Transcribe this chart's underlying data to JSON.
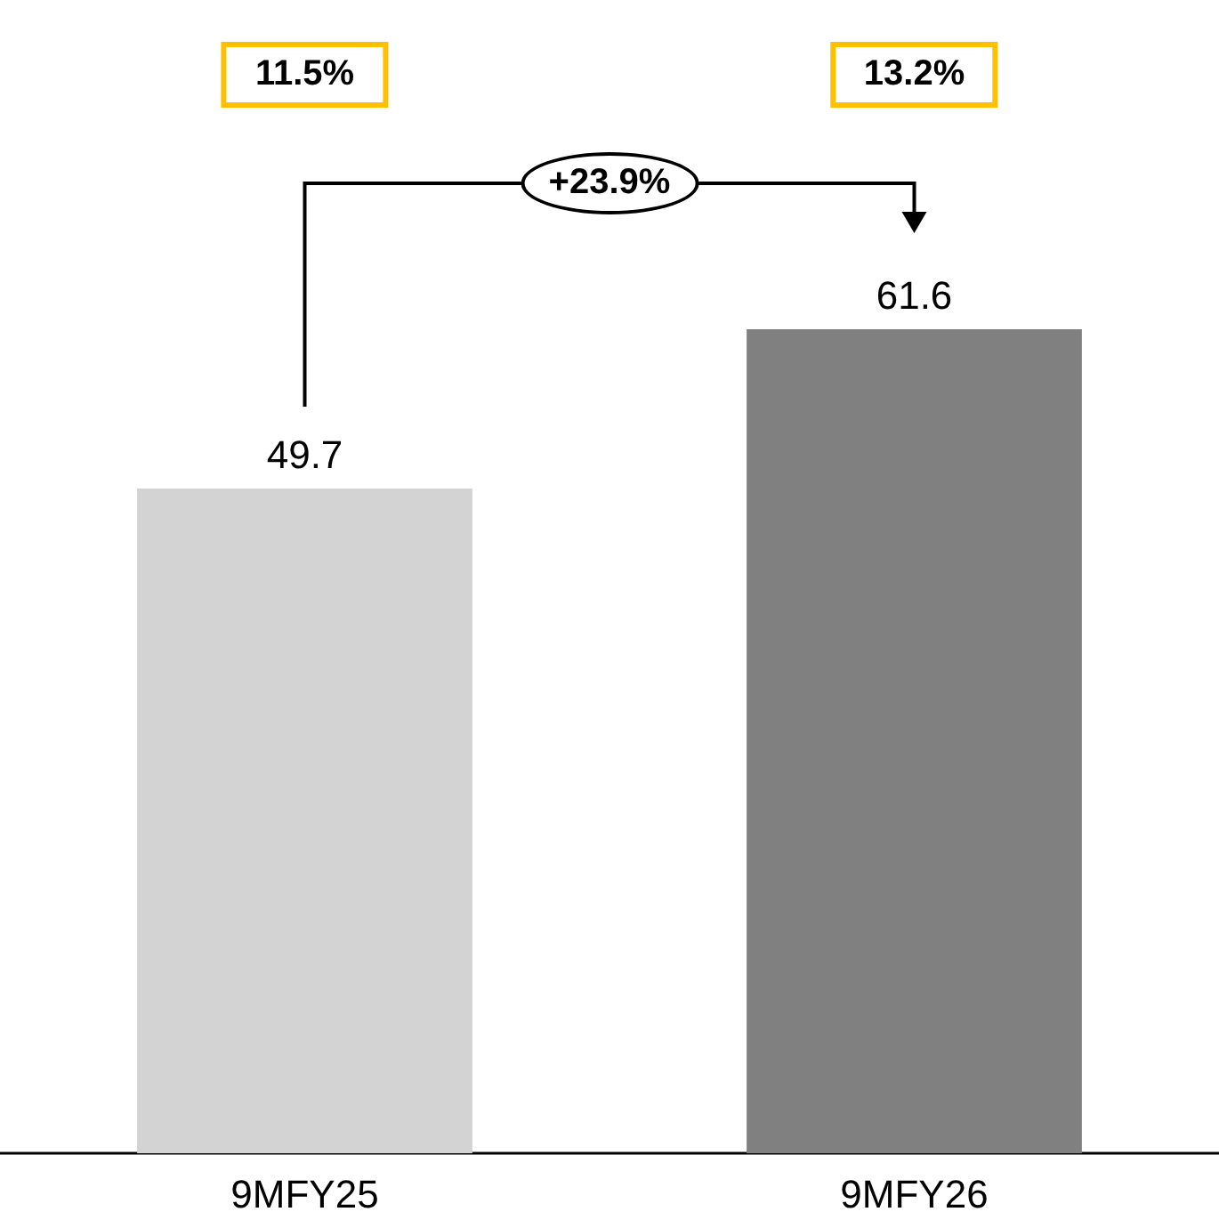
{
  "chart_data": {
    "type": "bar",
    "categories": [
      "9MFY25",
      "9MFY26"
    ],
    "values": [
      49.7,
      61.6
    ],
    "colors": [
      "#d3d3d3",
      "#808080"
    ],
    "data_labels": true,
    "annotations": [
      "11.5%",
      "13.2%",
      "+23.9%"
    ]
  }
}
